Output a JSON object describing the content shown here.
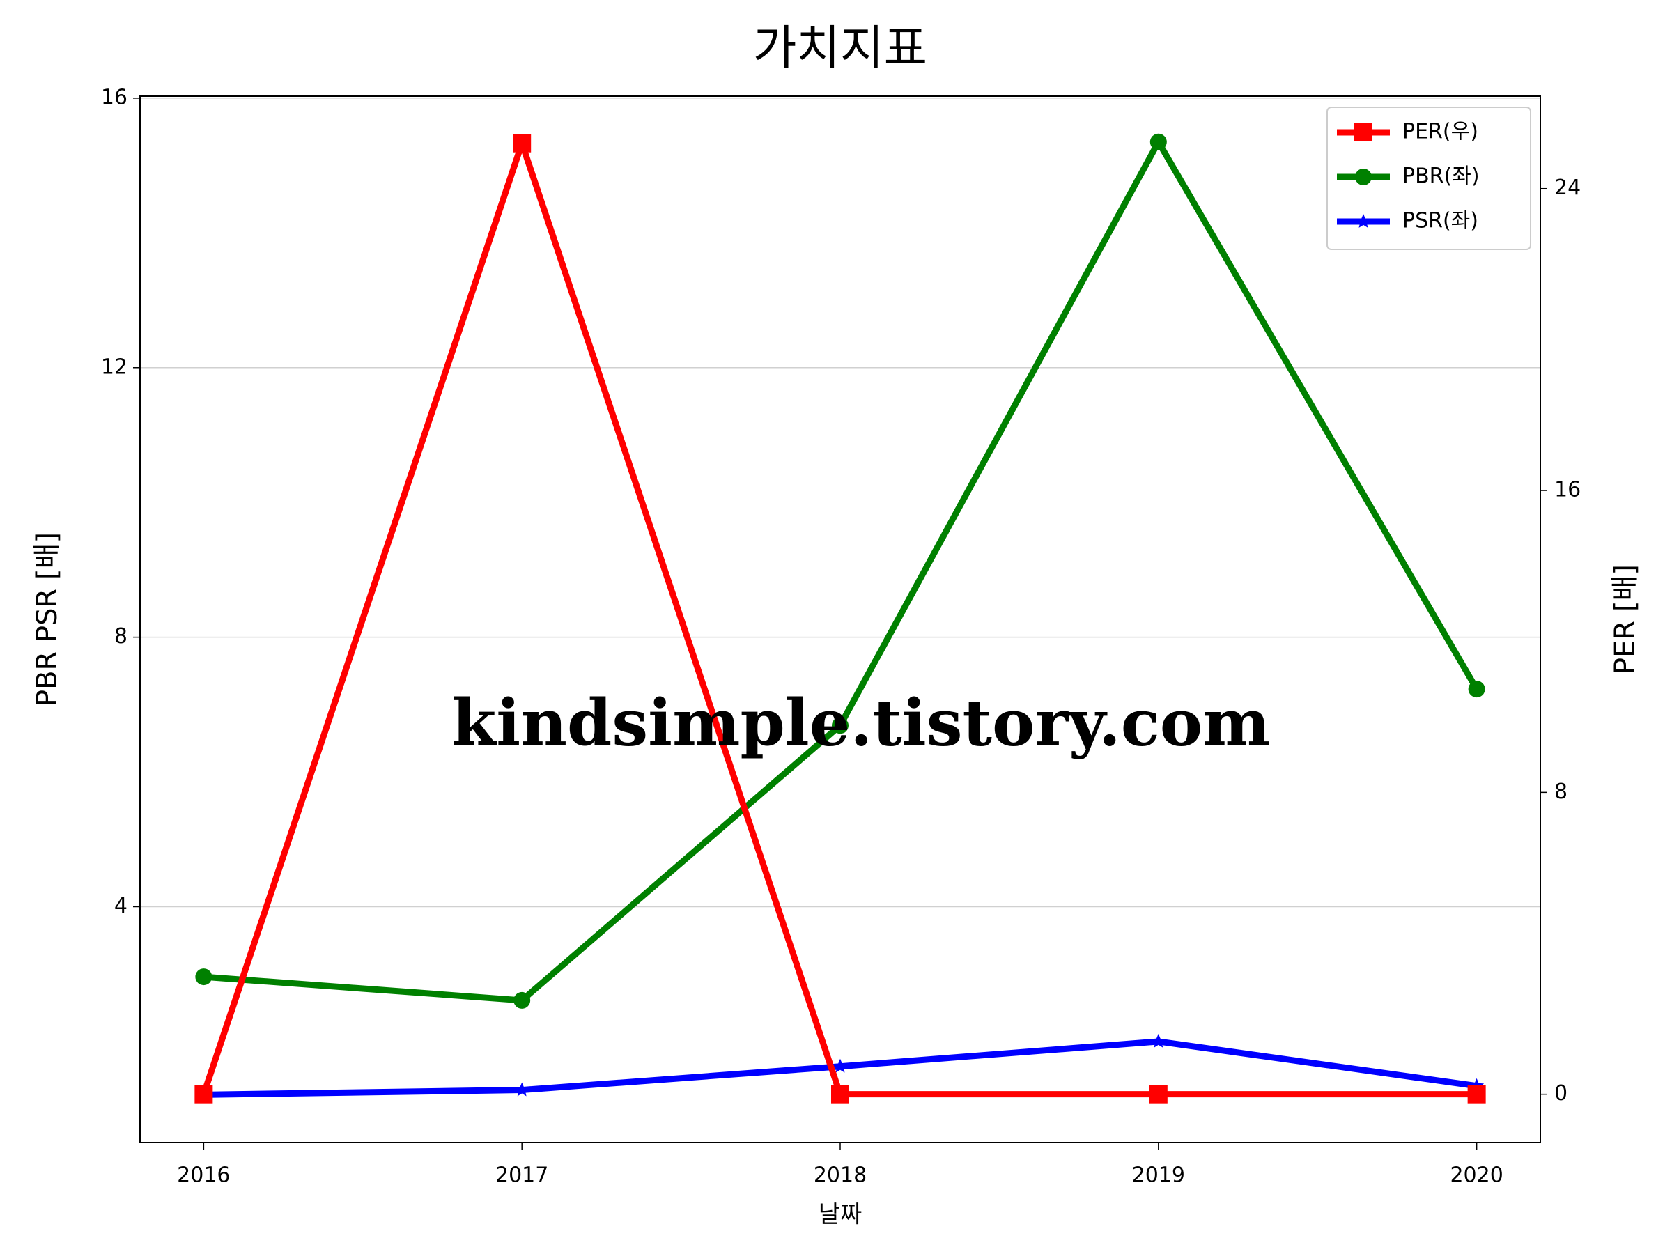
{
  "chart_data": {
    "type": "line",
    "title": "가치지표",
    "xlabel": "날짜",
    "ylabel": "PBR PSR [배]",
    "y2label": "PER [배]",
    "ylabel_color": "#008000",
    "y2label_color": "#ff0000",
    "watermark": "kindsimple.tistory.com",
    "x": [
      2016,
      2017,
      2018,
      2019,
      2020
    ],
    "xlim": [
      2015.8,
      2020.2
    ],
    "xticks": [
      2016,
      2017,
      2018,
      2019,
      2020
    ],
    "ylim": [
      0.5,
      16.03
    ],
    "yticks": [
      4,
      8,
      12,
      16
    ],
    "y2lim": [
      -1.28,
      26.45
    ],
    "y2ticks": [
      0,
      8,
      16,
      24
    ],
    "grid": true,
    "legend": "upper right",
    "series": [
      {
        "name": "PER(우)",
        "color": "#ff0000",
        "marker": "square",
        "axis": "y2",
        "values": [
          0,
          25.2,
          0,
          0,
          0
        ]
      },
      {
        "name": "PBR(좌)",
        "color": "#008000",
        "marker": "circle",
        "values": [
          2.96,
          2.61,
          6.69,
          15.35,
          7.23
        ]
      },
      {
        "name": "PSR(좌)",
        "color": "#0000ff",
        "marker": "star",
        "values": [
          1.21,
          1.28,
          1.63,
          2.0,
          1.34
        ]
      }
    ]
  }
}
